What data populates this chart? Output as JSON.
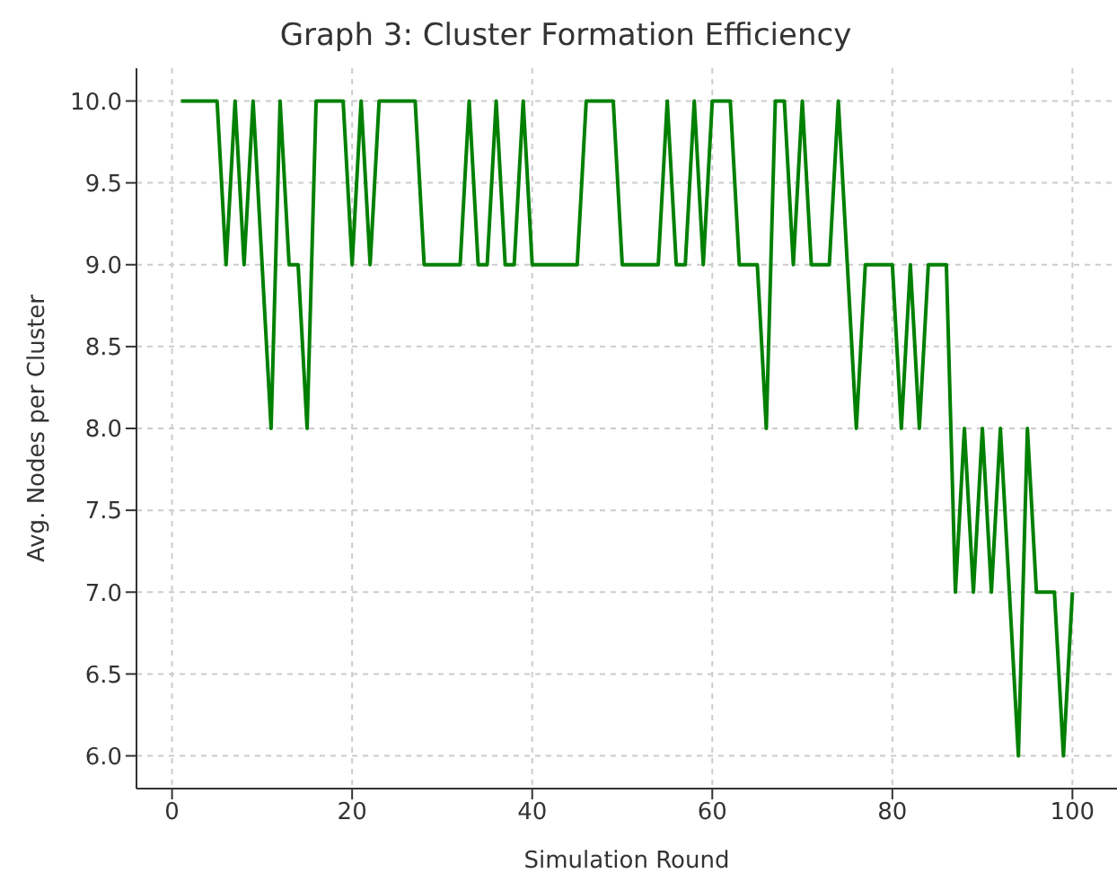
{
  "chart_data": {
    "type": "line",
    "title": "Graph 3: Cluster Formation Efficiency",
    "xlabel": "Simulation Round",
    "ylabel": "Avg. Nodes per Cluster",
    "x": [
      1,
      2,
      3,
      4,
      5,
      6,
      7,
      8,
      9,
      10,
      11,
      12,
      13,
      14,
      15,
      16,
      17,
      18,
      19,
      20,
      21,
      22,
      23,
      24,
      25,
      26,
      27,
      28,
      29,
      30,
      31,
      32,
      33,
      34,
      35,
      36,
      37,
      38,
      39,
      40,
      41,
      42,
      43,
      44,
      45,
      46,
      47,
      48,
      49,
      50,
      51,
      52,
      53,
      54,
      55,
      56,
      57,
      58,
      59,
      60,
      61,
      62,
      63,
      64,
      65,
      66,
      67,
      68,
      69,
      70,
      71,
      72,
      73,
      74,
      75,
      76,
      77,
      78,
      79,
      80,
      81,
      82,
      83,
      84,
      85,
      86,
      87,
      88,
      89,
      90,
      91,
      92,
      93,
      94,
      95,
      96,
      97,
      98,
      99,
      100
    ],
    "series": [
      {
        "color": "#008000",
        "values": [
          10,
          10,
          10,
          10,
          10,
          9,
          10,
          9,
          10,
          9,
          8,
          10,
          9,
          9,
          8,
          10,
          10,
          10,
          10,
          9,
          10,
          9,
          10,
          10,
          10,
          10,
          10,
          9,
          9,
          9,
          9,
          9,
          10,
          9,
          9,
          10,
          9,
          9,
          10,
          9,
          9,
          9,
          9,
          9,
          9,
          10,
          10,
          10,
          10,
          9,
          9,
          9,
          9,
          9,
          10,
          9,
          9,
          10,
          9,
          10,
          10,
          10,
          9,
          9,
          9,
          8,
          10,
          10,
          9,
          10,
          9,
          9,
          9,
          10,
          9,
          8,
          9,
          9,
          9,
          9,
          8,
          9,
          8,
          9,
          9,
          9,
          7,
          8,
          7,
          8,
          7,
          8,
          7,
          6,
          8,
          7,
          7,
          7,
          6,
          7
        ]
      }
    ],
    "xlim": [
      -3.95,
      104.95
    ],
    "xticks": [
      0,
      20,
      40,
      60,
      80,
      100
    ],
    "ylim": [
      5.8,
      10.2
    ],
    "yticks": [
      {
        "value": 6,
        "label": "6.0"
      },
      {
        "value": 6.5,
        "label": "6.5"
      },
      {
        "value": 7,
        "label": "7.0"
      },
      {
        "value": 7.5,
        "label": "7.5"
      },
      {
        "value": 8,
        "label": "8.0"
      },
      {
        "value": 8.5,
        "label": "8.5"
      },
      {
        "value": 9,
        "label": "9.0"
      },
      {
        "value": 9.5,
        "label": "9.5"
      },
      {
        "value": 10,
        "label": "10.0"
      }
    ],
    "grid": true,
    "marker": "none",
    "line_style": "solid"
  }
}
